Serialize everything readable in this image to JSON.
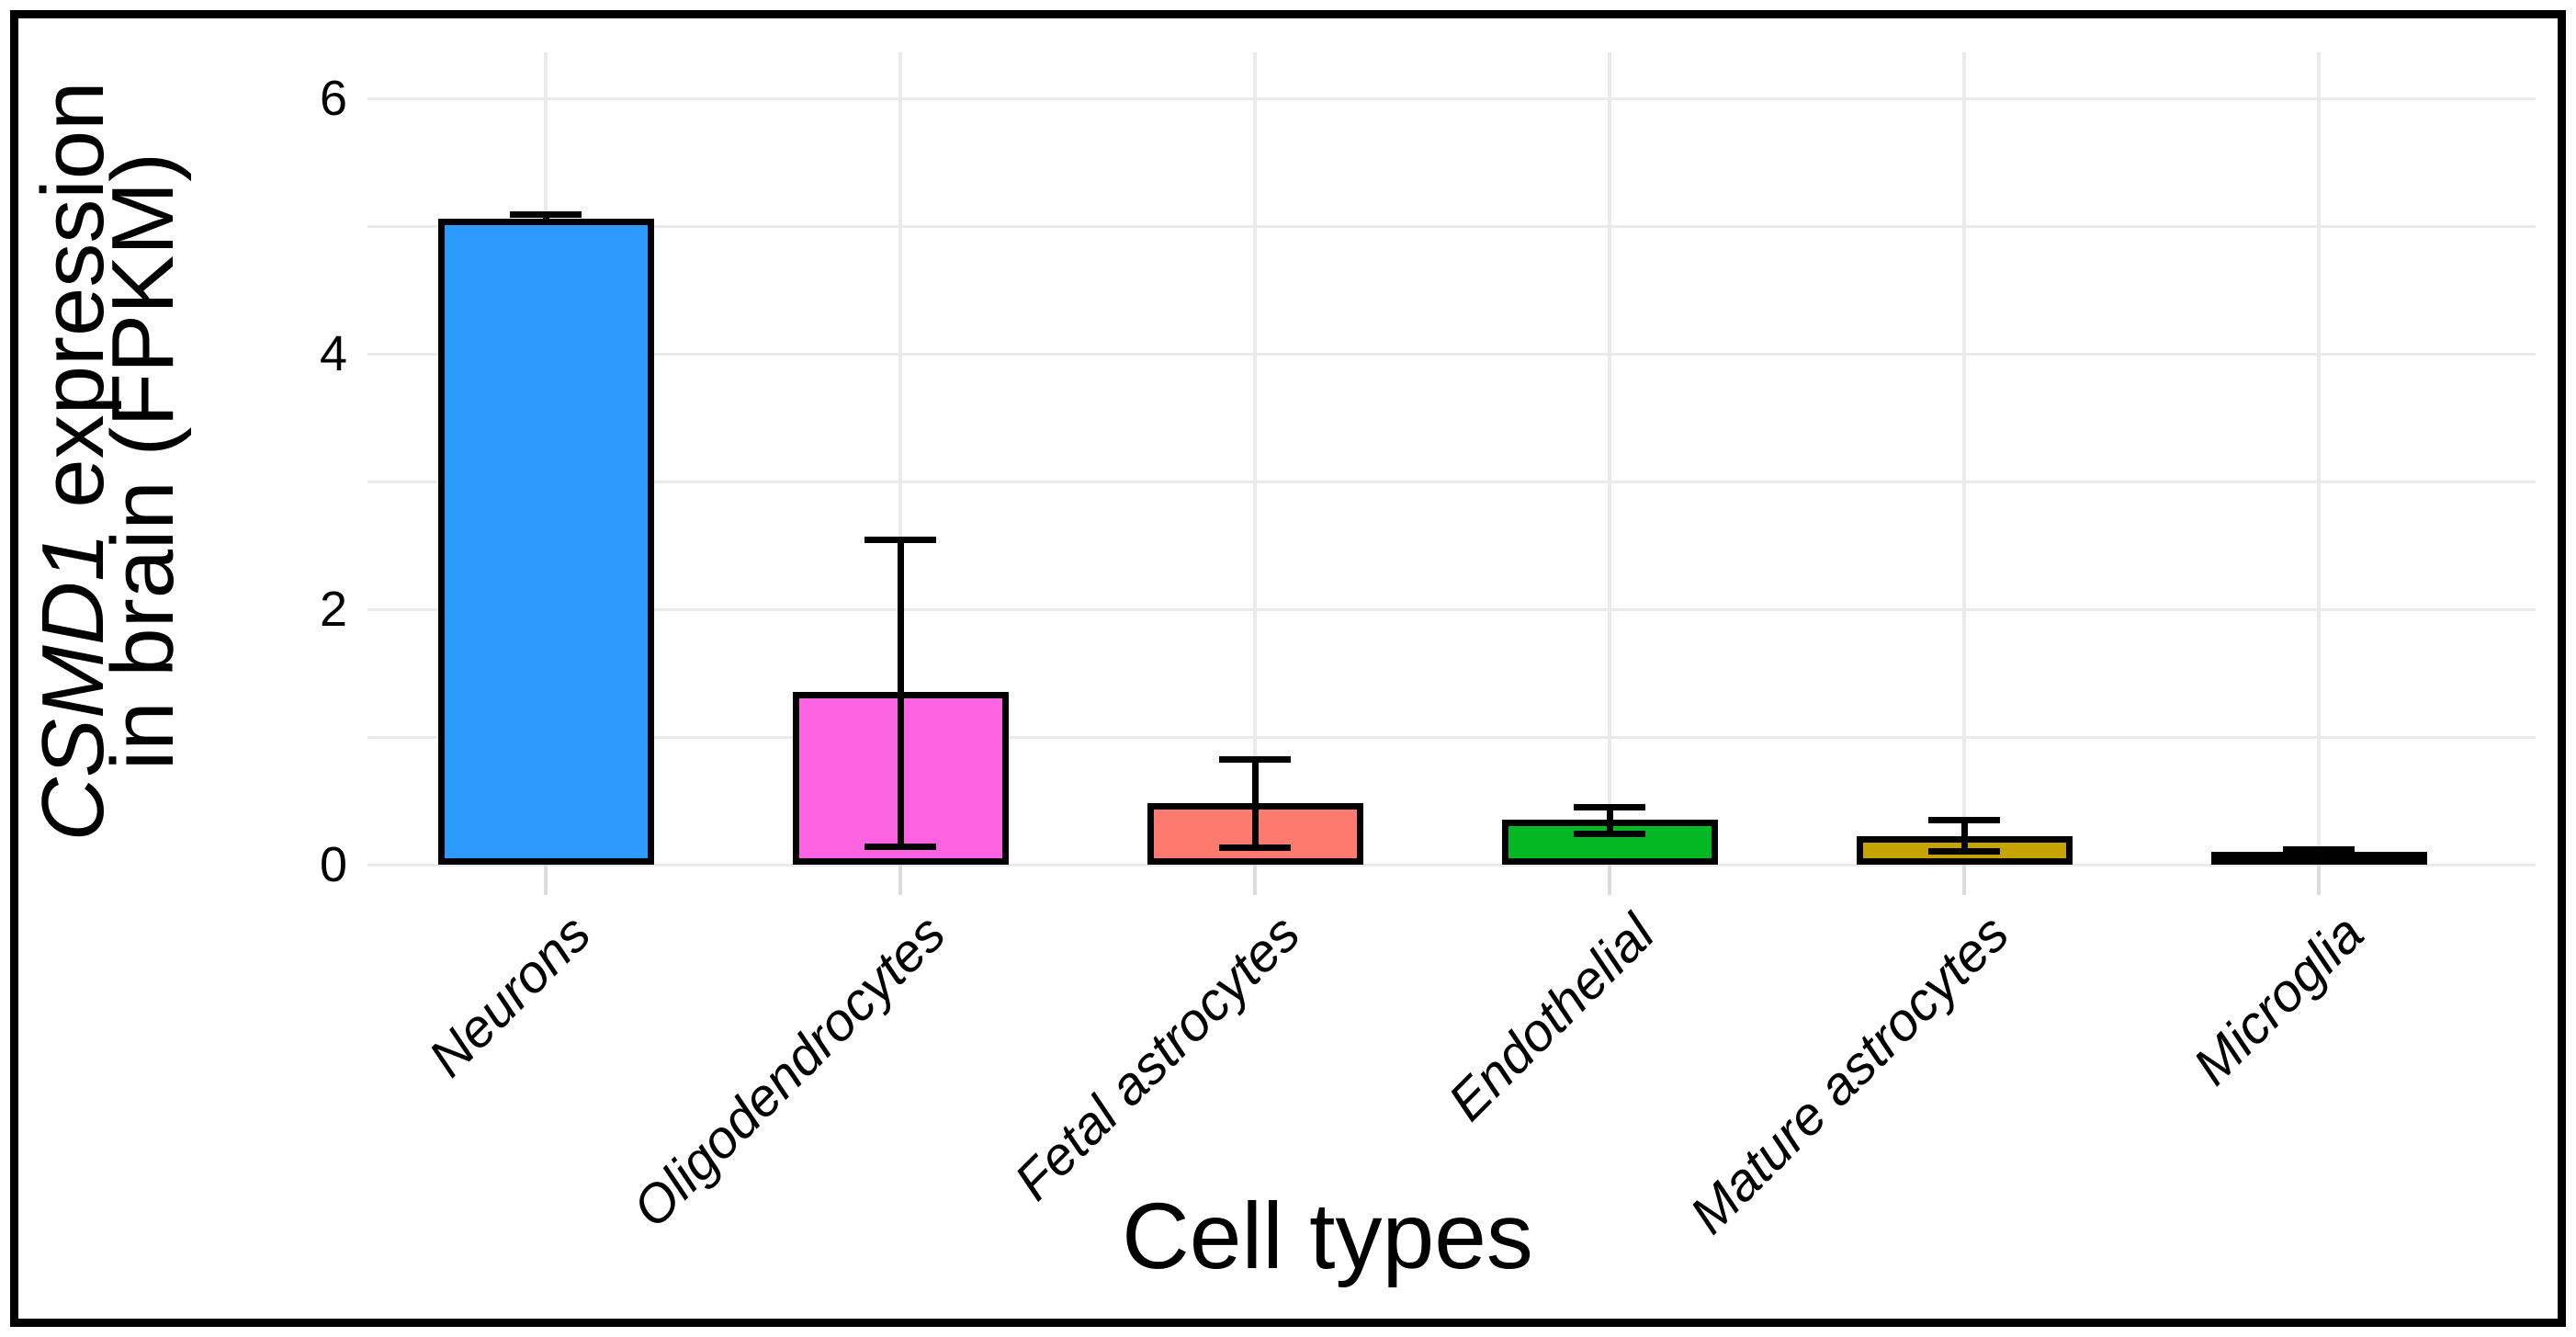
{
  "figure": {
    "background": "#ffffff",
    "border_color": "#000000"
  },
  "chart_data": {
    "type": "bar",
    "title": "",
    "xlabel": "Cell types",
    "ylabel_line1_italic": "CSMD1",
    "ylabel_line1_rest": " expression",
    "ylabel_line2": "in brain (FPKM)",
    "categories": [
      "Neurons",
      "Oligodendrocytes",
      "Fetal astrocytes",
      "Endothelial",
      "Mature astrocytes",
      "Microglia"
    ],
    "category_slugs": [
      "neurons",
      "oligodendrocytes",
      "fetal-astrocytes",
      "endothelial",
      "mature-astrocytes",
      "microglia"
    ],
    "values": [
      5.06,
      1.35,
      0.48,
      0.35,
      0.22,
      0.1
    ],
    "error_low": [
      5.03,
      0.14,
      0.13,
      0.24,
      0.1,
      0.08
    ],
    "error_high": [
      5.09,
      2.55,
      0.83,
      0.45,
      0.35,
      0.12
    ],
    "bar_colors": [
      "#2E9AFE",
      "#FC63E3",
      "#FE7A6F",
      "#03B823",
      "#C6A400",
      "#00BFC6"
    ],
    "bar_edge_color": "#000000",
    "error_color": "#000000",
    "gridline_color": "#EAEAEA",
    "tick_mark_color": "#DCDCDC",
    "grid": "on",
    "legend": "none",
    "ylim": [
      0,
      6.36
    ],
    "yticks": [
      0,
      2,
      4,
      6
    ],
    "ytick_labels": [
      "0",
      "2",
      "4",
      "6"
    ],
    "gridline_values": [
      0,
      1,
      2,
      3,
      4,
      5,
      6
    ]
  }
}
